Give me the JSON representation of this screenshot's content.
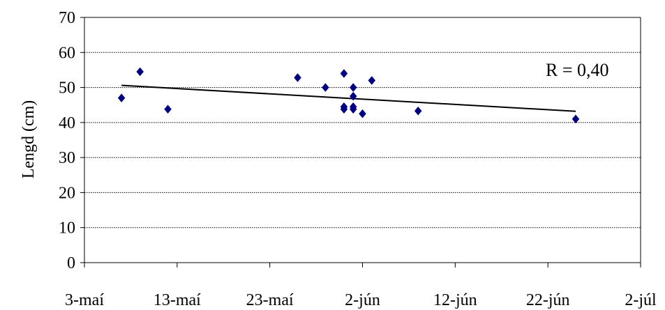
{
  "chart_data": {
    "type": "scatter",
    "title": "",
    "xlabel": "",
    "ylabel": "Lengd (cm)",
    "x_ticks": [
      "3-maí",
      "13-maí",
      "23-maí",
      "2-jún",
      "12-jún",
      "22-jún",
      "2-júl"
    ],
    "ylim": [
      0,
      70
    ],
    "y_ticks": [
      0,
      10,
      20,
      30,
      40,
      50,
      60,
      70
    ],
    "grid": "horizontal",
    "series": [
      {
        "color": "#000080",
        "marker": "diamond",
        "points": [
          {
            "x": "2008-05-07",
            "y": 47
          },
          {
            "x": "2008-05-09",
            "y": 54.5
          },
          {
            "x": "2008-05-12",
            "y": 43.8
          },
          {
            "x": "2008-05-26",
            "y": 52.8
          },
          {
            "x": "2008-05-29",
            "y": 50
          },
          {
            "x": "2008-05-31",
            "y": 54
          },
          {
            "x": "2008-05-31",
            "y": 44.5
          },
          {
            "x": "2008-05-31",
            "y": 43.8
          },
          {
            "x": "2008-06-01",
            "y": 50
          },
          {
            "x": "2008-06-01",
            "y": 47.5
          },
          {
            "x": "2008-06-01",
            "y": 44.5
          },
          {
            "x": "2008-06-01",
            "y": 43.8
          },
          {
            "x": "2008-06-02",
            "y": 42.5
          },
          {
            "x": "2008-06-03",
            "y": 52
          },
          {
            "x": "2008-06-08",
            "y": 43.3
          },
          {
            "x": "2008-06-25",
            "y": 41
          }
        ]
      }
    ],
    "trendline": {
      "type": "linear",
      "color": "#000000",
      "points": [
        {
          "x": "2008-05-07",
          "y": 50.6
        },
        {
          "x": "2008-06-25",
          "y": 43.2
        }
      ]
    },
    "annotation": "R = 0,40"
  }
}
